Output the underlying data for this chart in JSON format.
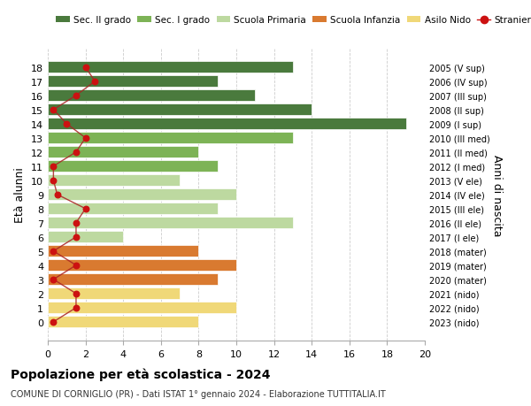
{
  "ages": [
    18,
    17,
    16,
    15,
    14,
    13,
    12,
    11,
    10,
    9,
    8,
    7,
    6,
    5,
    4,
    3,
    2,
    1,
    0
  ],
  "right_labels": [
    "2005 (V sup)",
    "2006 (IV sup)",
    "2007 (III sup)",
    "2008 (II sup)",
    "2009 (I sup)",
    "2010 (III med)",
    "2011 (II med)",
    "2012 (I med)",
    "2013 (V ele)",
    "2014 (IV ele)",
    "2015 (III ele)",
    "2016 (II ele)",
    "2017 (I ele)",
    "2018 (mater)",
    "2019 (mater)",
    "2020 (mater)",
    "2021 (nido)",
    "2022 (nido)",
    "2023 (nido)"
  ],
  "bar_values": [
    13,
    9,
    11,
    14,
    19,
    13,
    8,
    9,
    7,
    10,
    9,
    13,
    4,
    8,
    10,
    9,
    7,
    10,
    8
  ],
  "bar_colors": [
    "#4a7a3d",
    "#4a7a3d",
    "#4a7a3d",
    "#4a7a3d",
    "#4a7a3d",
    "#7db356",
    "#7db356",
    "#7db356",
    "#bdd9a0",
    "#bdd9a0",
    "#bdd9a0",
    "#bdd9a0",
    "#bdd9a0",
    "#d97a30",
    "#d97a30",
    "#d97a30",
    "#f0d878",
    "#f0d878",
    "#f0d878"
  ],
  "stranieri_x": [
    2.0,
    2.5,
    1.5,
    0.3,
    1.0,
    2.0,
    1.5,
    0.3,
    0.3,
    0.5,
    2.0,
    1.5,
    1.5,
    0.3,
    1.5,
    0.3,
    1.5,
    1.5,
    0.3
  ],
  "title_bold": "Popolazione per età scolastica - 2024",
  "subtitle": "COMUNE DI CORNIGLIO (PR) - Dati ISTAT 1° gennaio 2024 - Elaborazione TUTTITALIA.IT",
  "ylabel": "Età alunni",
  "right_ylabel": "Anni di nascita",
  "xlim": [
    0,
    20
  ],
  "xticks": [
    0,
    2,
    4,
    6,
    8,
    10,
    12,
    14,
    16,
    18,
    20
  ],
  "legend_labels": [
    "Sec. II grado",
    "Sec. I grado",
    "Scuola Primaria",
    "Scuola Infanzia",
    "Asilo Nido",
    "Stranieri"
  ],
  "legend_colors": [
    "#4a7a3d",
    "#7db356",
    "#bdd9a0",
    "#d97a30",
    "#f0d878",
    "#cc1111"
  ],
  "bg_color": "#ffffff",
  "grid_color": "#cccccc",
  "bar_height": 0.82
}
